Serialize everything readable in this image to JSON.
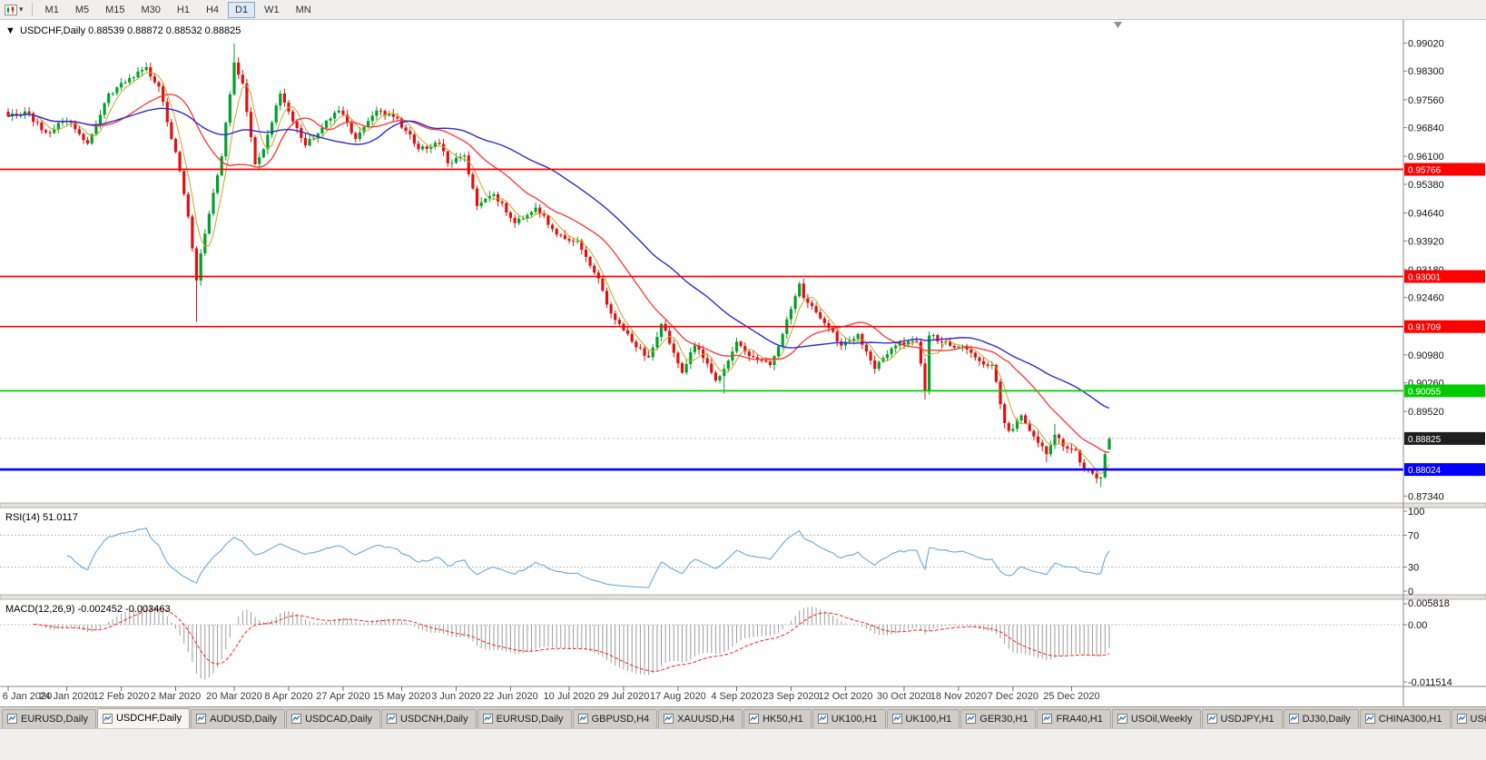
{
  "icons": {
    "collapse": "▼",
    "caret": "▾"
  },
  "toolbar": {
    "timeframes": [
      "M1",
      "M5",
      "M15",
      "M30",
      "H1",
      "H4",
      "D1",
      "W1",
      "MN"
    ],
    "active_timeframe": "D1"
  },
  "chart": {
    "symbol": "USDCHF",
    "period": "Daily",
    "header_text": "USDCHF,Daily 0.88539 0.88872 0.88532 0.88825",
    "ohlc": {
      "open": "0.88539",
      "high": "0.88872",
      "low": "0.88532",
      "close": "0.88825"
    }
  },
  "price_axis": {
    "ticks": [
      "0.99020",
      "0.98300",
      "0.97560",
      "0.96840",
      "0.96100",
      "0.95380",
      "0.94640",
      "0.93920",
      "0.93180",
      "0.92460",
      "0.90980",
      "0.90260",
      "0.89520",
      "0.87340"
    ],
    "badges": [
      {
        "value": "0.95766",
        "color": "#FF0000",
        "type": "resistance-1"
      },
      {
        "value": "0.93001",
        "color": "#FF0000",
        "type": "resistance-2"
      },
      {
        "value": "0.91709",
        "color": "#FF0000",
        "type": "resistance-3"
      },
      {
        "value": "0.90055",
        "color": "#00CC00",
        "type": "support-green"
      },
      {
        "value": "0.88825",
        "color": "#1E1E1E",
        "type": "current-price"
      },
      {
        "value": "0.88024",
        "color": "#0000FF",
        "type": "support-blue"
      }
    ]
  },
  "time_axis": {
    "labels": [
      {
        "i": 0,
        "text": "6 Jan 2020"
      },
      {
        "i": 14,
        "text": "24 Jan 2020"
      },
      {
        "i": 27,
        "text": "12 Feb 2020"
      },
      {
        "i": 40,
        "text": "2 Mar 2020"
      },
      {
        "i": 54,
        "text": "20 Mar 2020"
      },
      {
        "i": 67,
        "text": "8 Apr 2020"
      },
      {
        "i": 80,
        "text": "27 Apr 2020"
      },
      {
        "i": 94,
        "text": "15 May 2020"
      },
      {
        "i": 107,
        "text": "3 Jun 2020"
      },
      {
        "i": 120,
        "text": "22 Jun 2020"
      },
      {
        "i": 134,
        "text": "10 Jul 2020"
      },
      {
        "i": 147,
        "text": "29 Jul 2020"
      },
      {
        "i": 160,
        "text": "17 Aug 2020"
      },
      {
        "i": 174,
        "text": "4 Sep 2020"
      },
      {
        "i": 187,
        "text": "23 Sep 2020"
      },
      {
        "i": 200,
        "text": "12 Oct 2020"
      },
      {
        "i": 214,
        "text": "30 Oct 2020"
      },
      {
        "i": 227,
        "text": "18 Nov 2020"
      },
      {
        "i": 240,
        "text": "7 Dec 2020"
      },
      {
        "i": 254,
        "text": "25 Dec 2020"
      }
    ]
  },
  "rsi_panel": {
    "label_text": "RSI(14) 51.0117",
    "value": "51.0117",
    "scale": [
      "100",
      "70",
      "30",
      "0"
    ],
    "levels": [
      70,
      30
    ]
  },
  "macd_panel": {
    "label_text": "MACD(12,26,9) -0.002452 -0.003463",
    "values": "-0.002452 -0.003463",
    "scale": [
      "0.005818",
      "0.00",
      "-0.011514"
    ]
  },
  "chart_data": {
    "type": "candlestick",
    "symbol": "USDCHF",
    "timeframe": "Daily",
    "bars": 264,
    "y_range": [
      0.8716,
      0.9957
    ],
    "colors": {
      "up": "#00A22A",
      "down": "#E01010"
    },
    "last_candle": {
      "o": 0.88539,
      "h": 0.88872,
      "l": 0.88532,
      "c": 0.88825
    },
    "price_keypoints": [
      [
        0,
        0.9713
      ],
      [
        4,
        0.9726
      ],
      [
        9,
        0.9672
      ],
      [
        14,
        0.9701
      ],
      [
        17,
        0.9668
      ],
      [
        19,
        0.9643
      ],
      [
        24,
        0.9772
      ],
      [
        29,
        0.9812
      ],
      [
        33,
        0.984
      ],
      [
        36,
        0.979
      ],
      [
        39,
        0.9655
      ],
      [
        41,
        0.9572
      ],
      [
        43,
        0.9455
      ],
      [
        45,
        0.929
      ],
      [
        46,
        0.936
      ],
      [
        48,
        0.9462
      ],
      [
        51,
        0.961
      ],
      [
        53,
        0.977
      ],
      [
        54,
        0.9852
      ],
      [
        56,
        0.9798
      ],
      [
        59,
        0.959
      ],
      [
        61,
        0.9628
      ],
      [
        65,
        0.9772
      ],
      [
        68,
        0.97
      ],
      [
        71,
        0.9638
      ],
      [
        76,
        0.9702
      ],
      [
        79,
        0.9728
      ],
      [
        83,
        0.9655
      ],
      [
        88,
        0.9728
      ],
      [
        93,
        0.9708
      ],
      [
        98,
        0.9628
      ],
      [
        103,
        0.9642
      ],
      [
        105,
        0.9592
      ],
      [
        109,
        0.9612
      ],
      [
        112,
        0.9482
      ],
      [
        116,
        0.9512
      ],
      [
        121,
        0.9438
      ],
      [
        126,
        0.9478
      ],
      [
        131,
        0.9408
      ],
      [
        136,
        0.9392
      ],
      [
        141,
        0.9295
      ],
      [
        144,
        0.9205
      ],
      [
        146,
        0.9178
      ],
      [
        149,
        0.9132
      ],
      [
        153,
        0.9092
      ],
      [
        156,
        0.9178
      ],
      [
        161,
        0.9052
      ],
      [
        164,
        0.9122
      ],
      [
        169,
        0.9032
      ],
      [
        171,
        0.9062
      ],
      [
        174,
        0.9132
      ],
      [
        178,
        0.9092
      ],
      [
        182,
        0.9072
      ],
      [
        185,
        0.9152
      ],
      [
        189,
        0.9282
      ],
      [
        190,
        0.9245
      ],
      [
        194,
        0.9192
      ],
      [
        199,
        0.9122
      ],
      [
        203,
        0.9152
      ],
      [
        207,
        0.9062
      ],
      [
        212,
        0.9122
      ],
      [
        217,
        0.9132
      ],
      [
        219,
        0.9005
      ],
      [
        220,
        0.9148
      ],
      [
        224,
        0.9132
      ],
      [
        229,
        0.9112
      ],
      [
        232,
        0.9082
      ],
      [
        235,
        0.9072
      ],
      [
        238,
        0.8922
      ],
      [
        239,
        0.8902
      ],
      [
        242,
        0.8942
      ],
      [
        244,
        0.8902
      ],
      [
        248,
        0.8842
      ],
      [
        250,
        0.8892
      ],
      [
        252,
        0.8862
      ],
      [
        255,
        0.8852
      ],
      [
        257,
        0.8802
      ],
      [
        259,
        0.8792
      ],
      [
        261,
        0.8782
      ],
      [
        262,
        0.8842
      ],
      [
        263,
        0.88825
      ]
    ],
    "spikes": [
      {
        "i": 33,
        "high": 0.9849
      },
      {
        "i": 45,
        "low": 0.9183
      },
      {
        "i": 54,
        "high": 0.9901
      },
      {
        "i": 171,
        "low": 0.8998
      },
      {
        "i": 219,
        "low": 0.8983
      },
      {
        "i": 248,
        "low": 0.8821
      },
      {
        "i": 250,
        "high": 0.892
      },
      {
        "i": 261,
        "low": 0.8757
      }
    ],
    "horizontal_lines": [
      {
        "price": 0.95766,
        "color": "#FF0000",
        "width": 1.7
      },
      {
        "price": 0.93001,
        "color": "#FF0000",
        "width": 1.7
      },
      {
        "price": 0.91709,
        "color": "#FF0000",
        "width": 1.7
      },
      {
        "price": 0.90055,
        "color": "#00CC00",
        "width": 1.7
      },
      {
        "price": 0.88024,
        "color": "#0000FF",
        "width": 2.6
      }
    ],
    "moving_averages": [
      {
        "period": 5,
        "color": "#C9A227",
        "width": 1
      },
      {
        "period": 20,
        "color": "#FF3030",
        "width": 1.3
      },
      {
        "period": 45,
        "color": "#2B2BD6",
        "width": 1.4
      }
    ],
    "indicators": {
      "rsi": {
        "period": 14,
        "last": 51.0117
      },
      "macd": {
        "fast": 12,
        "slow": 26,
        "signal": 9,
        "last_macd": -0.002452,
        "last_signal": -0.003463
      }
    }
  },
  "tabs": {
    "active_index": 1,
    "items": [
      {
        "label": "EURUSD,Daily"
      },
      {
        "label": "USDCHF,Daily"
      },
      {
        "label": "AUDUSD,Daily"
      },
      {
        "label": "USDCAD,Daily"
      },
      {
        "label": "USDCNH,Daily"
      },
      {
        "label": "EURUSD,Daily"
      },
      {
        "label": "GBPUSD,H4"
      },
      {
        "label": "XAUUSD,H4"
      },
      {
        "label": "HK50,H1"
      },
      {
        "label": "UK100,H1"
      },
      {
        "label": "UK100,H1"
      },
      {
        "label": "GER30,H1"
      },
      {
        "label": "FRA40,H1"
      },
      {
        "label": "USOil,Weekly"
      },
      {
        "label": "USDJPY,H1"
      },
      {
        "label": "DJ30,Daily"
      },
      {
        "label": "CHINA300,H1"
      },
      {
        "label": "USOil,"
      }
    ]
  }
}
